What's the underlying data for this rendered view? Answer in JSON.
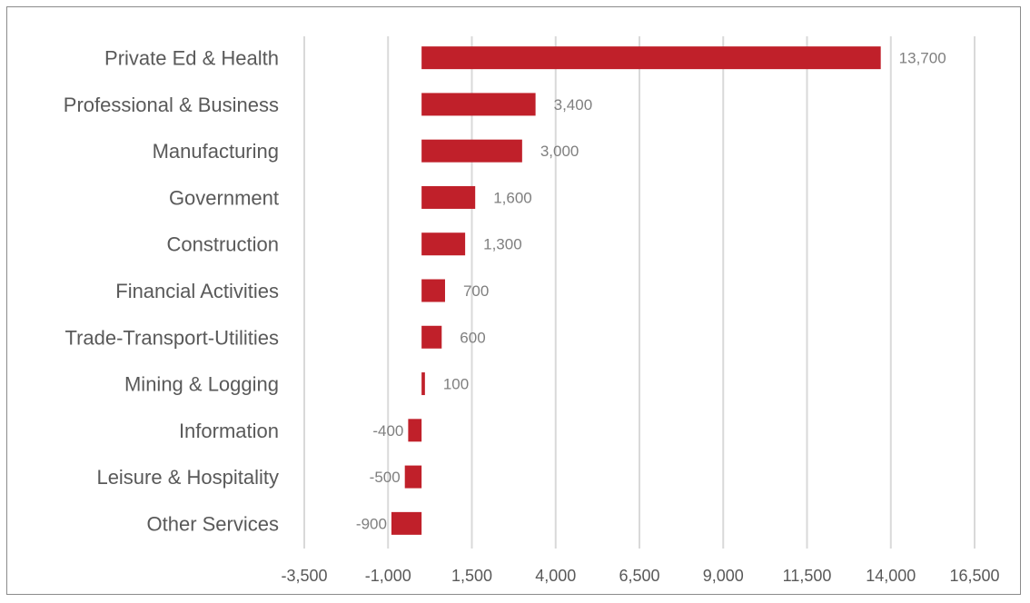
{
  "chart_data": {
    "type": "bar",
    "orientation": "horizontal",
    "categories": [
      "Private Ed & Health",
      "Professional & Business",
      "Manufacturing",
      "Government",
      "Construction",
      "Financial Activities",
      "Trade-Transport-Utilities",
      "Mining & Logging",
      "Information",
      "Leisure & Hospitality",
      "Other Services"
    ],
    "values": [
      13700,
      3400,
      3000,
      1600,
      1300,
      700,
      600,
      100,
      -400,
      -500,
      -900
    ],
    "data_labels": [
      "13,700",
      "3,400",
      "3,000",
      "1,600",
      "1,300",
      "700",
      "600",
      "100",
      "-400",
      "-500",
      "-900"
    ],
    "xticks": [
      -3500,
      -1000,
      1500,
      4000,
      6500,
      9000,
      11500,
      14000,
      16500
    ],
    "xtick_labels": [
      "-3,500",
      "-1,000",
      "1,500",
      "4,000",
      "6,500",
      "9,000",
      "11,500",
      "14,000",
      "16,500"
    ],
    "xlim": [
      -3500,
      16500
    ],
    "title": "",
    "xlabel": "",
    "ylabel": "",
    "grid": "vertical",
    "legend": "none",
    "bar_color": "#c0202a"
  }
}
